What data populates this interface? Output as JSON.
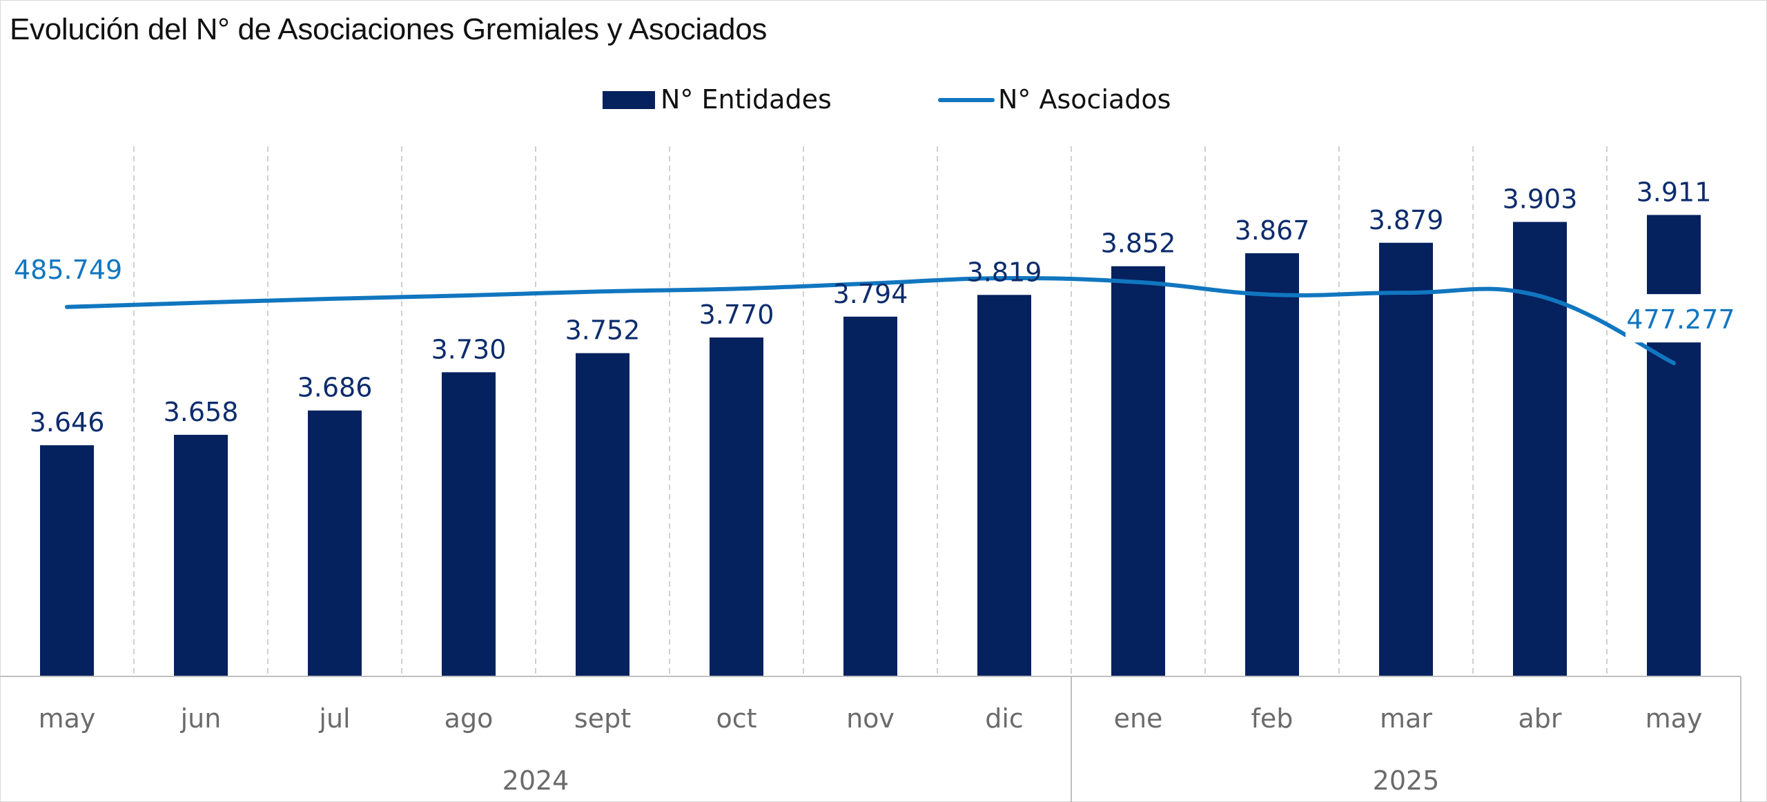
{
  "title": "Evolución del N° de Asociaciones Gremiales y Asociados",
  "colors": {
    "bars": "#05215e",
    "line": "#1176c0",
    "bar_label": "#0d2c6c",
    "line_label": "#1176c0",
    "grid": "#d0d0d0",
    "axis": "#bfbfbf"
  },
  "chart_data": {
    "type": "bar",
    "categories": [
      "may",
      "jun",
      "jul",
      "ago",
      "sept",
      "oct",
      "nov",
      "dic",
      "ene",
      "feb",
      "mar",
      "abr",
      "may"
    ],
    "year_groups": [
      {
        "label": "2024",
        "count": 8
      },
      {
        "label": "2025",
        "count": 5
      }
    ],
    "series": [
      {
        "name": "N° Entidades",
        "type": "bar",
        "values": [
          3646,
          3658,
          3686,
          3730,
          3752,
          3770,
          3794,
          3819,
          3852,
          3867,
          3879,
          3903,
          3911
        ],
        "labels": [
          "3.646",
          "3.658",
          "3.686",
          "3.730",
          "3.752",
          "3.770",
          "3.794",
          "3.819",
          "3.852",
          "3.867",
          "3.879",
          "3.903",
          "3.911"
        ]
      },
      {
        "name": "N° Asociados",
        "type": "line",
        "values": [
          485749,
          486400,
          487000,
          487500,
          488100,
          488500,
          489300,
          490100,
          489500,
          487600,
          487900,
          487400,
          477277
        ]
      }
    ],
    "line_labels": [
      {
        "index": 0,
        "text": "485.749"
      },
      {
        "index": 12,
        "text": "477.277"
      }
    ],
    "y_bar_range": [
      3380,
      3990
    ],
    "y_line_range": [
      430000,
      510000
    ],
    "legend_position": "top-center",
    "gridlines": "vertical-dashed"
  }
}
